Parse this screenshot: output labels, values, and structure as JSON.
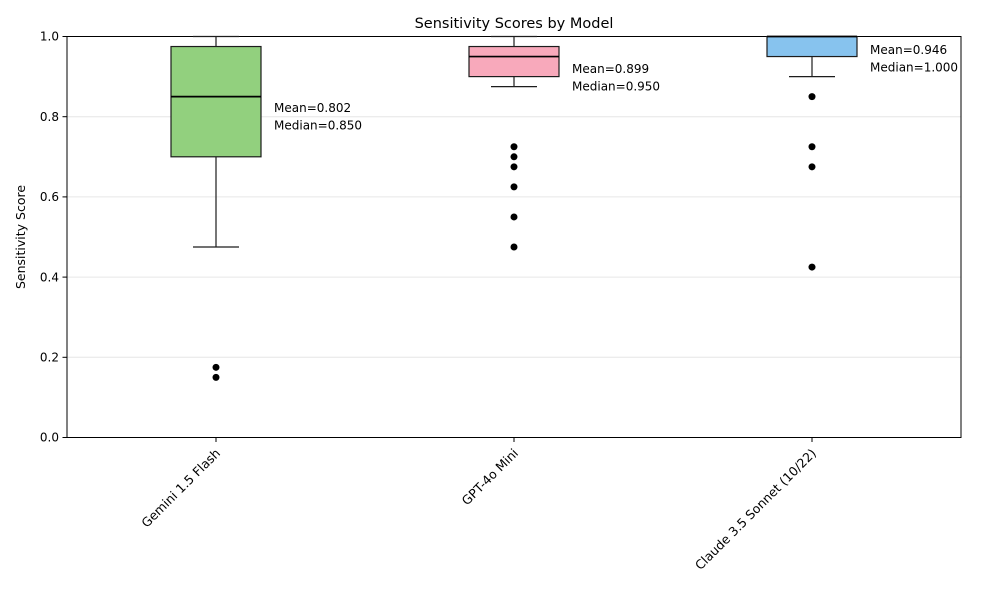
{
  "chart_data": {
    "type": "box",
    "title": "Sensitivity Scores by Model",
    "ylabel": "Sensitivity Score",
    "xlabel": "",
    "ylim": [
      0.0,
      1.0
    ],
    "yticks": [
      0.0,
      0.2,
      0.4,
      0.6,
      0.8,
      1.0
    ],
    "ytick_labels": [
      "0.0",
      "0.2",
      "0.4",
      "0.6",
      "0.8",
      "1.0"
    ],
    "grid": "horizontal-light",
    "legend": "none",
    "categories": [
      "Gemini 1.5 Flash",
      "GPT-4o Mini",
      "Claude 3.5 Sonnet (10/22)"
    ],
    "series": [
      {
        "label": "Gemini 1.5 Flash",
        "box_color": "#92d07e",
        "whisker_low": 0.475,
        "q1": 0.7,
        "median": 0.85,
        "q3": 0.975,
        "whisker_high": 1.0,
        "outliers": [
          0.175,
          0.15
        ],
        "mean": 0.802,
        "annotation_lines": [
          "Mean=0.802",
          "Median=0.850"
        ]
      },
      {
        "label": "GPT-4o Mini",
        "box_color": "#f8a9bb",
        "whisker_low": 0.875,
        "q1": 0.9,
        "median": 0.95,
        "q3": 0.975,
        "whisker_high": 1.0,
        "outliers": [
          0.725,
          0.7,
          0.675,
          0.625,
          0.55,
          0.475
        ],
        "mean": 0.899,
        "annotation_lines": [
          "Mean=0.899",
          "Median=0.950"
        ]
      },
      {
        "label": "Claude 3.5 Sonnet (10/22)",
        "box_color": "#87c3ee",
        "whisker_low": 0.9,
        "q1": 0.95,
        "median": 1.0,
        "q3": 1.0,
        "whisker_high": 1.0,
        "outliers": [
          0.85,
          0.725,
          0.675,
          0.425
        ],
        "mean": 0.946,
        "annotation_lines": [
          "Mean=0.946",
          "Median=1.000"
        ]
      }
    ],
    "style": {
      "edge_color": "#1c1c1c",
      "median_color": "#000000",
      "outlier_color": "#000000",
      "grid_color": "#e6e6e6",
      "spine_color": "#000000",
      "background": "#ffffff"
    }
  }
}
